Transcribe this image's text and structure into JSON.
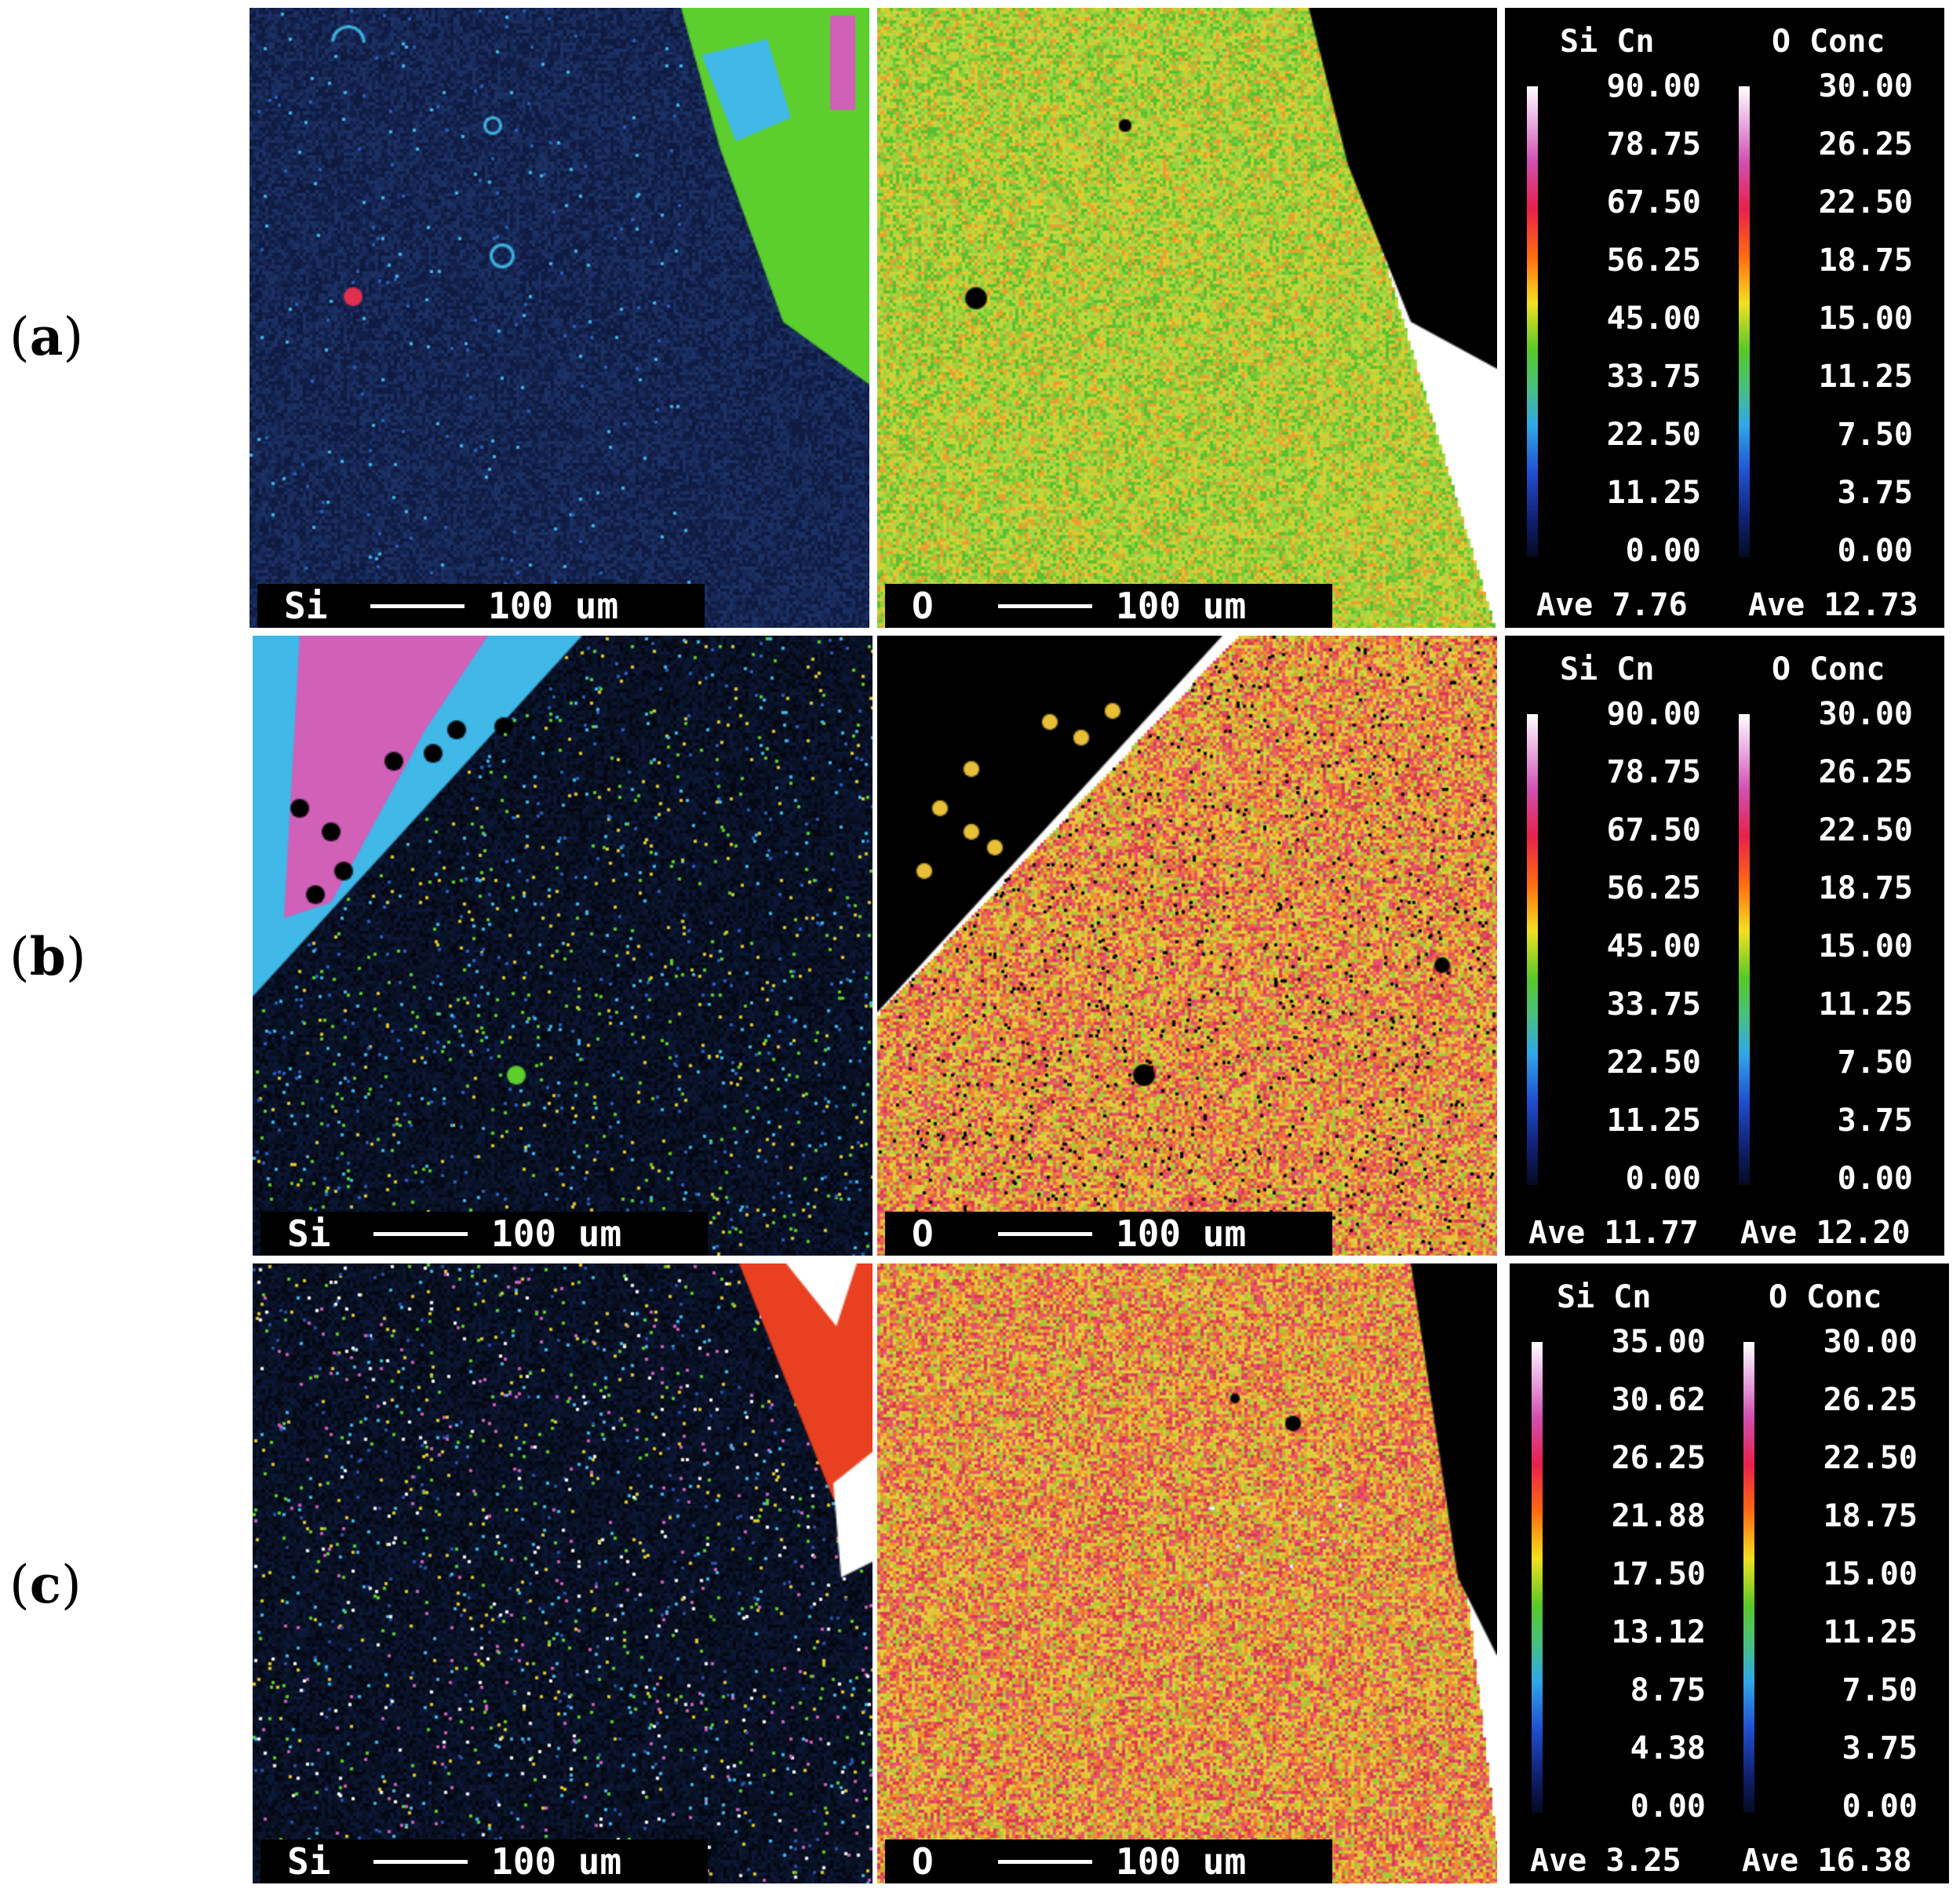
{
  "rows": [
    {
      "label": "a",
      "si_panel": {
        "element": "Si",
        "scale": "100 um"
      },
      "o_panel": {
        "element": "O",
        "scale": "100 um"
      },
      "legend": {
        "si_title": "Si  Cn",
        "o_title": "O Conc",
        "si_ticks": [
          "90.00",
          "78.75",
          "67.50",
          "56.25",
          "45.00",
          "33.75",
          "22.50",
          "11.25",
          "0.00"
        ],
        "o_ticks": [
          "30.00",
          "26.25",
          "22.50",
          "18.75",
          "15.00",
          "11.25",
          "7.50",
          "3.75",
          "0.00"
        ],
        "si_ave": "Ave 7.76",
        "o_ave": "Ave 12.73"
      }
    },
    {
      "label": "b",
      "si_panel": {
        "element": "Si",
        "scale": "100 um"
      },
      "o_panel": {
        "element": "O",
        "scale": "100 um"
      },
      "legend": {
        "si_title": "Si  Cn",
        "o_title": "O Conc",
        "si_ticks": [
          "90.00",
          "78.75",
          "67.50",
          "56.25",
          "45.00",
          "33.75",
          "22.50",
          "11.25",
          "0.00"
        ],
        "o_ticks": [
          "30.00",
          "26.25",
          "22.50",
          "18.75",
          "15.00",
          "11.25",
          "7.50",
          "3.75",
          "0.00"
        ],
        "si_ave": "Ave 11.77",
        "o_ave": "Ave 12.20"
      }
    },
    {
      "label": "c",
      "si_panel": {
        "element": "Si",
        "scale": "100 um"
      },
      "o_panel": {
        "element": "O",
        "scale": "100 um"
      },
      "legend": {
        "si_title": "Si  Cn",
        "o_title": "O Conc",
        "si_ticks": [
          "35.00",
          "30.62",
          "26.25",
          "21.88",
          "17.50",
          "13.12",
          "8.75",
          "4.38",
          "0.00"
        ],
        "o_ticks": [
          "30.00",
          "26.25",
          "22.50",
          "18.75",
          "15.00",
          "11.25",
          "7.50",
          "3.75",
          "0.00"
        ],
        "si_ave": "Ave 3.25",
        "o_ave": "Ave 16.38"
      }
    }
  ],
  "colors": {
    "background": "#000000",
    "dark_blue_matrix": "#13204a",
    "green_phase": "#5ccf2e",
    "cyan_phase": "#40b8e8",
    "magenta_phase": "#d060b8",
    "red_orange_phase": "#e84020"
  }
}
